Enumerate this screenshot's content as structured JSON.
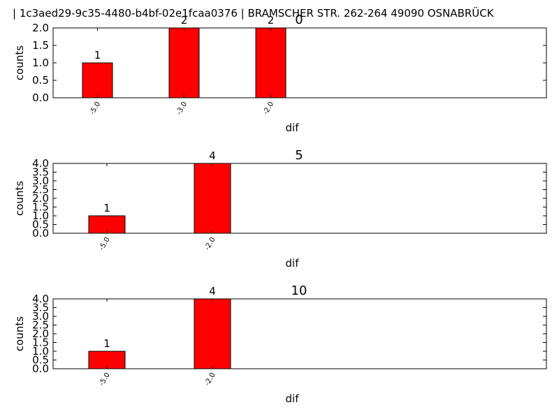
{
  "header": {
    "text": "| 1c3aed29-9c35-4480-b4bf-02e1fcaa0376 |          BRAMSCHER STR. 262-264  49090 OSNABRÜCK"
  },
  "colors": {
    "bar": "#ff0000",
    "axes": "#000000",
    "background": "#ffffff"
  },
  "chart_data": [
    {
      "type": "bar",
      "title": "0",
      "xlabel": "dif",
      "ylabel": "counts",
      "categories": [
        "-5.0",
        "-3.0",
        "-2.0"
      ],
      "values": [
        1,
        2,
        2
      ],
      "ylim": [
        0,
        2
      ],
      "yticks": [
        "0.0",
        "0.5",
        "1.0",
        "1.5",
        "2.0"
      ],
      "grid": false
    },
    {
      "type": "bar",
      "title": "5",
      "xlabel": "dif",
      "ylabel": "counts",
      "categories": [
        "-5.0",
        "-2.0"
      ],
      "values": [
        1,
        4
      ],
      "ylim": [
        0,
        4
      ],
      "yticks": [
        "0.0",
        "0.5",
        "1.0",
        "1.5",
        "2.0",
        "2.5",
        "3.0",
        "3.5",
        "4.0"
      ],
      "grid": false
    },
    {
      "type": "bar",
      "title": "10",
      "xlabel": "dif",
      "ylabel": "counts",
      "categories": [
        "-5.0",
        "-2.0"
      ],
      "values": [
        1,
        4
      ],
      "ylim": [
        0,
        4
      ],
      "yticks": [
        "0.0",
        "0.5",
        "1.0",
        "1.5",
        "2.0",
        "2.5",
        "3.0",
        "3.5",
        "4.0"
      ],
      "grid": false
    }
  ]
}
